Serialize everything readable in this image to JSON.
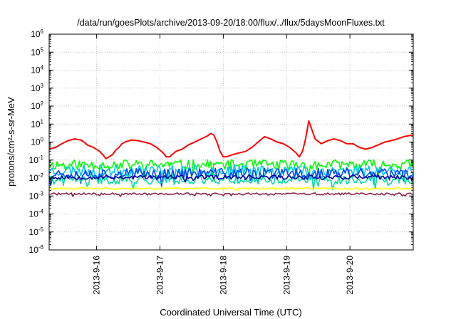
{
  "chart_data": {
    "type": "line",
    "title": "/data/run/goesPlots/archive/2013-09-20/18:00/flux/../flux/5daysMoonFluxes.txt",
    "xlabel": "Coordinated Universal Time (UTC)",
    "ylabel": "protons/cm²-s-sr-MeV",
    "yscale": "log",
    "ylim": [
      1e-06,
      1000000
    ],
    "xlim": [
      0,
      5.75
    ],
    "x_origin_label": "2013-9-15 06:00",
    "grid": true,
    "legend": "none",
    "y_ticks": [
      {
        "base": "10",
        "exp": "6"
      },
      {
        "base": "10",
        "exp": "5"
      },
      {
        "base": "10",
        "exp": "4"
      },
      {
        "base": "10",
        "exp": "3"
      },
      {
        "base": "10",
        "exp": "2"
      },
      {
        "base": "10",
        "exp": "1"
      },
      {
        "base": "10",
        "exp": "0"
      },
      {
        "base": "10",
        "exp": "-1"
      },
      {
        "base": "10",
        "exp": "-2"
      },
      {
        "base": "10",
        "exp": "-3"
      },
      {
        "base": "10",
        "exp": "-4"
      },
      {
        "base": "10",
        "exp": "-5"
      },
      {
        "base": "10",
        "exp": "-6"
      }
    ],
    "x_ticks": [
      {
        "label": "2013-9-16",
        "x": 0.75
      },
      {
        "label": "2013-9-17",
        "x": 1.75
      },
      {
        "label": "2013-9-18",
        "x": 2.75
      },
      {
        "label": "2013-9-19",
        "x": 3.75
      },
      {
        "label": "2013-9-20",
        "x": 4.75
      }
    ],
    "series": [
      {
        "color": "#ff0000",
        "x": [
          0,
          0.1,
          0.2,
          0.3,
          0.4,
          0.5,
          0.55,
          0.6,
          0.7,
          0.8,
          0.9,
          1.0,
          1.05,
          1.1,
          1.15,
          1.2,
          1.3,
          1.4,
          1.5,
          1.6,
          1.7,
          1.8,
          1.85,
          1.9,
          2.0,
          2.1,
          2.2,
          2.3,
          2.4,
          2.5,
          2.55,
          2.6,
          2.65,
          2.7,
          2.75,
          2.8,
          2.9,
          3.0,
          3.1,
          3.2,
          3.3,
          3.4,
          3.5,
          3.6,
          3.7,
          3.8,
          3.9,
          3.95,
          4.0,
          4.05,
          4.1,
          4.2,
          4.3,
          4.4,
          4.5,
          4.6,
          4.7,
          4.8,
          4.9,
          5.0,
          5.1,
          5.2,
          5.3,
          5.4,
          5.5,
          5.6,
          5.75
        ],
        "y": [
          0.4,
          0.5,
          0.8,
          1.2,
          1.5,
          1.3,
          1.0,
          0.7,
          0.5,
          0.3,
          0.12,
          0.2,
          0.35,
          0.5,
          0.8,
          1.0,
          1.3,
          1.2,
          1.0,
          0.8,
          0.5,
          0.25,
          0.15,
          0.15,
          0.3,
          0.4,
          0.7,
          1.0,
          1.5,
          2.2,
          3.0,
          2.5,
          1.0,
          0.3,
          0.15,
          0.15,
          0.2,
          0.25,
          0.3,
          0.5,
          1.0,
          2.0,
          1.5,
          1.0,
          0.8,
          0.5,
          0.25,
          0.15,
          0.3,
          1.5,
          15.0,
          1.5,
          0.8,
          1.2,
          1.5,
          1.2,
          0.8,
          0.8,
          0.5,
          0.4,
          0.5,
          0.7,
          1.0,
          1.2,
          1.5,
          2.0,
          2.5
        ]
      },
      {
        "color": "#00ff00",
        "base": 0.055,
        "amp": 0.28,
        "seed": 11
      },
      {
        "color": "#00c8e6",
        "base": 0.026,
        "amp": 0.32,
        "seed": 23
      },
      {
        "color": "#0044ff",
        "base": 0.018,
        "amp": 0.3,
        "seed": 37
      },
      {
        "color": "#00dca0",
        "base": 0.008,
        "amp": 0.25,
        "seed": 41
      },
      {
        "color": "#0000a0",
        "base": 0.011,
        "amp": 0.12,
        "seed": 53
      },
      {
        "color": "#ffff00",
        "base": 0.0026,
        "amp": 0.05,
        "seed": 61
      },
      {
        "color": "#8b2252",
        "base": 0.0013,
        "amp": 0.06,
        "seed": 71
      }
    ]
  }
}
